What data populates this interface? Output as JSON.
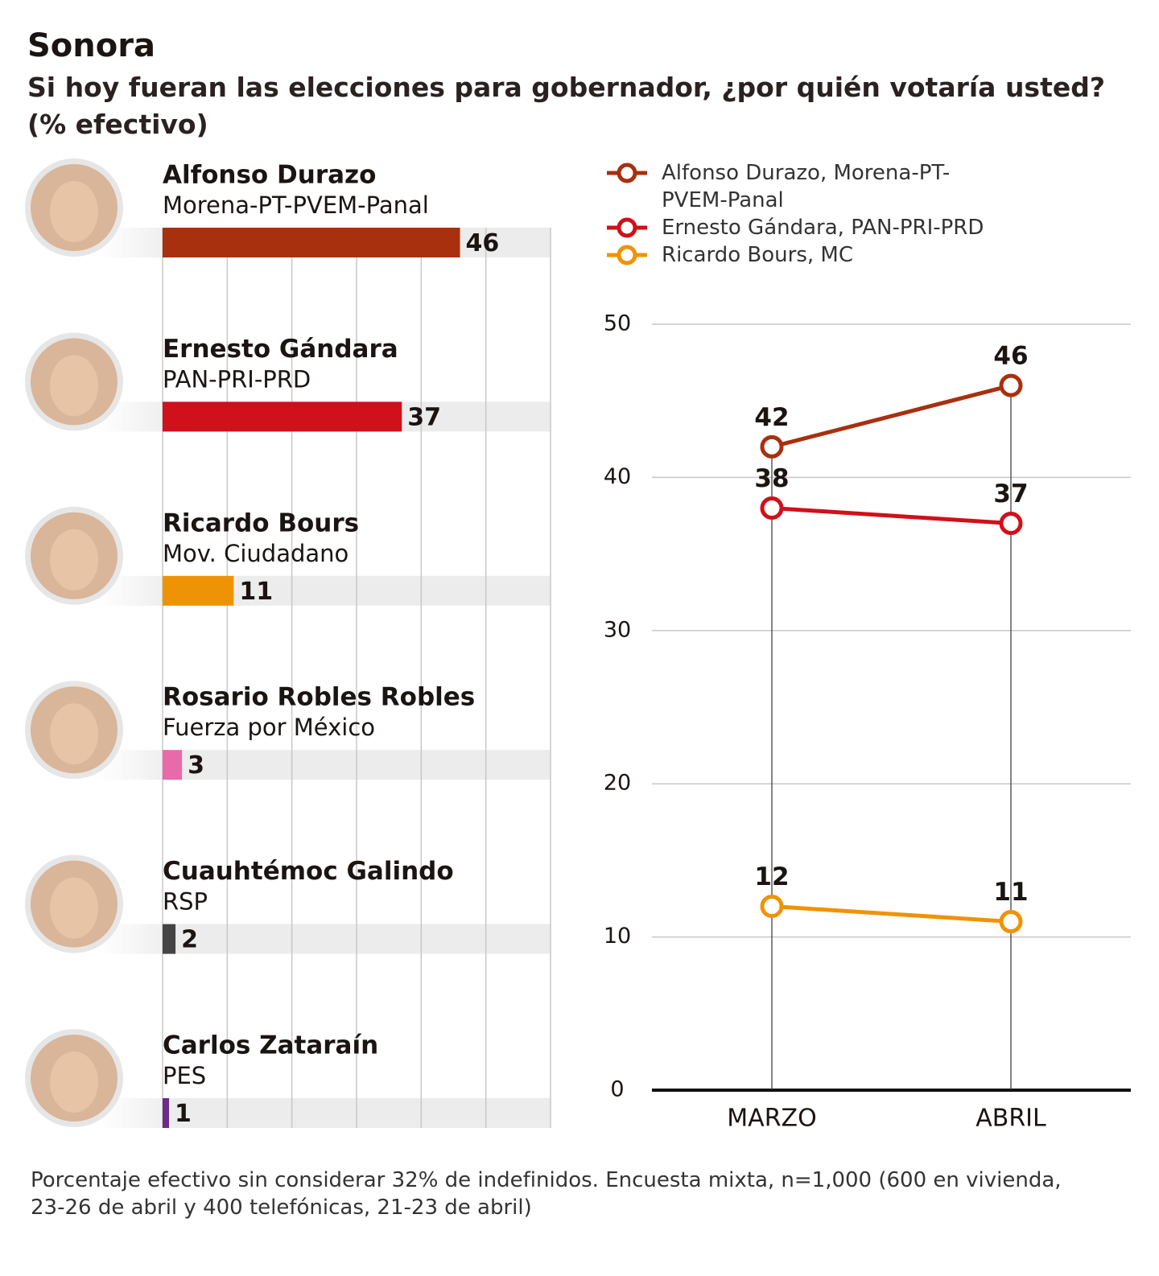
{
  "header": {
    "title": "Sonora",
    "subtitle": "Si hoy fueran las elecciones para gobernador, ¿por quién votaría usted? (% efectivo)"
  },
  "chart_data": [
    {
      "type": "bar",
      "orientation": "horizontal",
      "categories": [
        "Alfonso Durazo",
        "Ernesto Gándara",
        "Ricardo Bours",
        "Rosario Robles Robles",
        "Cuauhtémoc Galindo",
        "Carlos Zataraín"
      ],
      "parties": [
        "Morena-PT-PVEM-Panal",
        "PAN-PRI-PRD",
        "Mov. Ciudadano",
        "Fuerza por México",
        "RSP",
        "PES"
      ],
      "values": [
        46,
        37,
        11,
        3,
        2,
        1
      ],
      "colors": [
        "#a8300f",
        "#d0101a",
        "#ef9306",
        "#e86aa8",
        "#444444",
        "#6b2a8c"
      ],
      "xlim": [
        0,
        60
      ],
      "xticks": [
        0,
        10,
        20,
        30,
        40,
        50,
        60
      ],
      "grid": true
    },
    {
      "type": "line",
      "x": [
        "MARZO",
        "ABRIL"
      ],
      "series": [
        {
          "name": "Alfonso Durazo, Morena-PT-PVEM-Panal",
          "color": "#a8300f",
          "values": [
            42,
            46
          ]
        },
        {
          "name": "Ernesto Gándara, PAN-PRI-PRD",
          "color": "#d0101a",
          "values": [
            38,
            37
          ]
        },
        {
          "name": "Ricardo Bours, MC",
          "color": "#ef9306",
          "values": [
            12,
            11
          ]
        }
      ],
      "ylim": [
        0,
        50
      ],
      "yticks": [
        0,
        10,
        20,
        30,
        40,
        50
      ],
      "grid": true,
      "legend": "top-left"
    }
  ],
  "footnote": "Porcentaje efectivo sin considerar 32% de indefinidos. Encuesta mixta, n=1,000 (600 en vivienda, 23-26 de abril y 400 telefónicas, 21-23 de abril)"
}
